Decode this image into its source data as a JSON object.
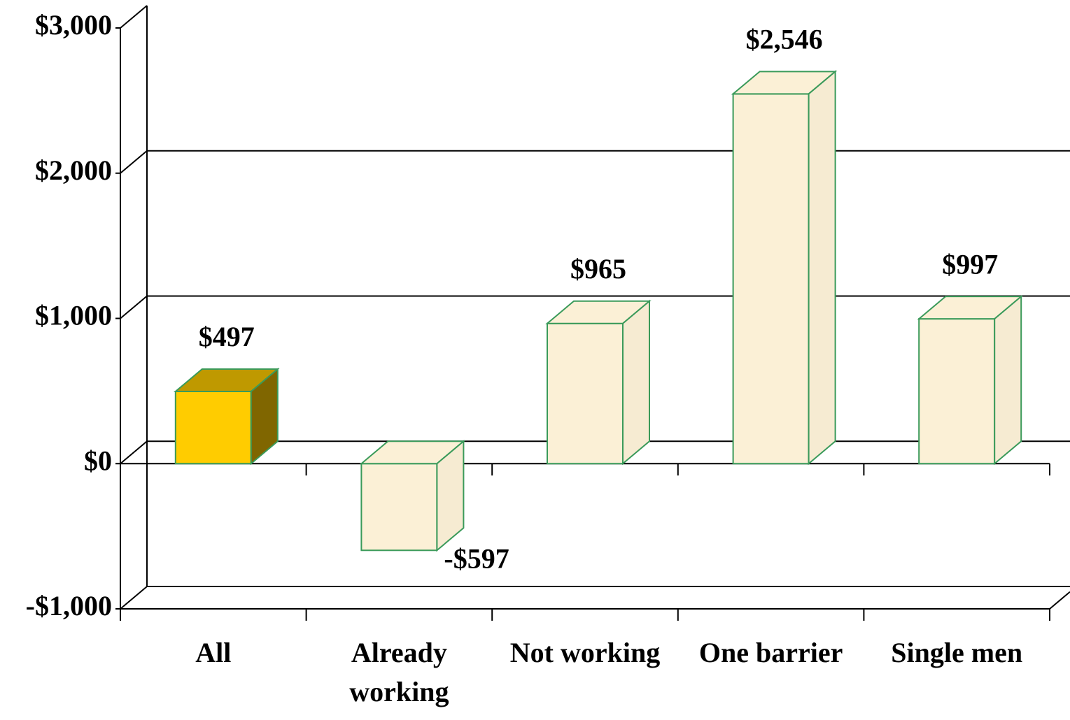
{
  "chart_data": {
    "type": "bar3d",
    "categories": [
      "All",
      "Already working",
      "Not working",
      "One barrier",
      "Single men"
    ],
    "values": [
      497,
      -597,
      965,
      2546,
      997
    ],
    "value_labels": [
      "$497",
      "-$597",
      "$965",
      "$2,546",
      "$997"
    ],
    "colors": [
      "#ffcc00",
      "#fbf0d6",
      "#fbf0d6",
      "#fbf0d6",
      "#fbf0d6"
    ],
    "edge_color": "#3a9a5a",
    "ylim": [
      -1000,
      3000
    ],
    "yticks": [
      {
        "value": -1000,
        "label": "-$1,000"
      },
      {
        "value": 0,
        "label": "$0"
      },
      {
        "value": 1000,
        "label": "$1,000"
      },
      {
        "value": 2000,
        "label": "$2,000"
      },
      {
        "value": 3000,
        "label": "$3,000"
      }
    ],
    "grid": true
  }
}
